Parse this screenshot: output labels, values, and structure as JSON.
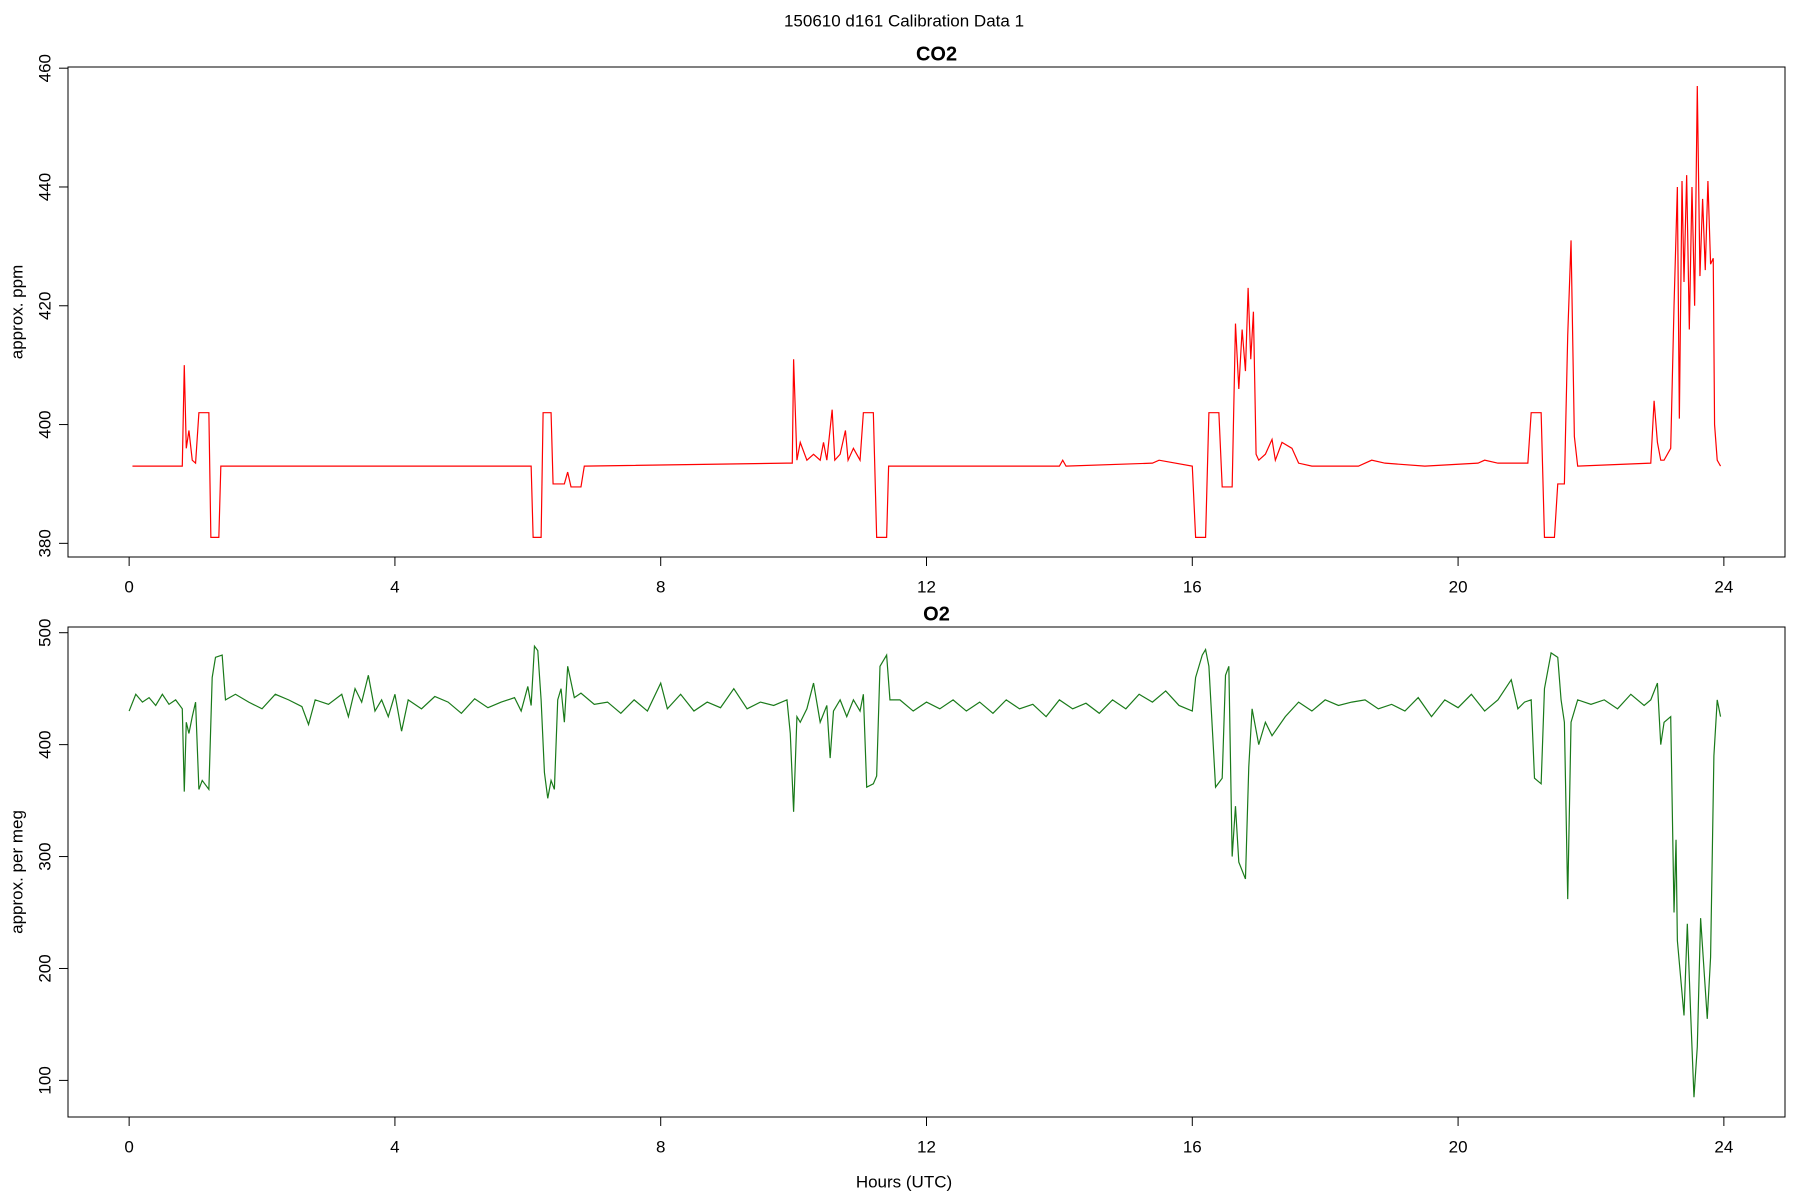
{
  "title": "150610   d161   Calibration Data 1",
  "chart_data": [
    {
      "type": "line",
      "title": "CO2",
      "y_label": "approx. ppm",
      "xlim": [
        -0.92,
        24.92
      ],
      "xticks": [
        0,
        4,
        8,
        12,
        16,
        20,
        24
      ],
      "ylim": [
        377.7,
        460.2
      ],
      "yticks": [
        380,
        400,
        420,
        440,
        460
      ],
      "series": [
        {
          "name": "CO2",
          "color": "#ff0000",
          "x": [
            0.05,
            0.8,
            0.83,
            0.86,
            0.9,
            0.95,
            1.0,
            1.05,
            1.2,
            1.23,
            1.35,
            1.38,
            6.05,
            6.08,
            6.2,
            6.23,
            6.35,
            6.38,
            6.55,
            6.6,
            6.65,
            6.8,
            6.85,
            9.9,
            9.98,
            10.0,
            10.05,
            10.1,
            10.2,
            10.3,
            10.4,
            10.45,
            10.5,
            10.58,
            10.62,
            10.7,
            10.78,
            10.82,
            10.9,
            11.0,
            11.05,
            11.2,
            11.25,
            11.4,
            11.43,
            14.0,
            14.05,
            14.1,
            15.4,
            15.5,
            16.0,
            16.05,
            16.2,
            16.25,
            16.4,
            16.45,
            16.6,
            16.65,
            16.7,
            16.75,
            16.8,
            16.84,
            16.88,
            16.92,
            16.96,
            17.0,
            17.1,
            17.2,
            17.25,
            17.35,
            17.5,
            17.6,
            17.8,
            18.5,
            18.7,
            18.9,
            19.5,
            20.3,
            20.4,
            20.6,
            21.05,
            21.1,
            21.25,
            21.3,
            21.45,
            21.5,
            21.6,
            21.65,
            21.7,
            21.75,
            21.8,
            22.9,
            22.95,
            23.0,
            23.05,
            23.1,
            23.2,
            23.25,
            23.3,
            23.33,
            23.37,
            23.4,
            23.44,
            23.48,
            23.52,
            23.56,
            23.6,
            23.64,
            23.68,
            23.72,
            23.76,
            23.8,
            23.84,
            23.86,
            23.9,
            23.95
          ],
          "values": [
            393,
            393,
            410,
            396,
            399,
            394,
            393.5,
            402,
            402,
            381,
            381,
            393,
            393,
            381,
            381,
            402,
            402,
            390,
            390,
            392,
            389.5,
            389.5,
            393,
            393.5,
            393.5,
            411,
            394,
            397,
            394,
            395,
            394,
            397,
            394,
            402.5,
            394,
            395,
            399,
            394,
            396,
            394,
            402,
            402,
            381,
            381,
            393,
            393,
            394,
            393,
            393.5,
            394,
            393,
            381,
            381,
            402,
            402,
            389.5,
            389.5,
            417,
            406,
            416,
            409,
            423,
            411,
            419,
            395,
            394,
            395,
            397.5,
            394,
            397,
            396,
            393.5,
            393,
            393,
            394,
            393.5,
            393,
            393.5,
            394,
            393.5,
            393.5,
            402,
            402,
            381,
            381,
            390,
            390,
            415,
            431,
            398,
            393,
            393.5,
            404,
            397,
            394,
            394,
            396,
            420,
            440,
            401,
            441,
            424,
            442,
            416,
            440,
            420,
            457,
            425,
            438,
            426,
            441,
            427,
            428,
            400,
            394,
            393
          ]
        }
      ]
    },
    {
      "type": "line",
      "title": "O2",
      "y_label": "approx. per meg",
      "x_label": "Hours (UTC)",
      "xlim": [
        -0.92,
        24.92
      ],
      "xticks": [
        0,
        4,
        8,
        12,
        16,
        20,
        24
      ],
      "ylim": [
        67.3,
        505.1
      ],
      "yticks": [
        100,
        200,
        300,
        400,
        500
      ],
      "series": [
        {
          "name": "O2",
          "color": "#1a7a1a",
          "x": [
            0.0,
            0.1,
            0.2,
            0.3,
            0.4,
            0.5,
            0.6,
            0.7,
            0.8,
            0.83,
            0.86,
            0.9,
            0.95,
            1.0,
            1.05,
            1.1,
            1.2,
            1.25,
            1.3,
            1.4,
            1.45,
            1.6,
            1.8,
            2.0,
            2.2,
            2.4,
            2.6,
            2.7,
            2.8,
            3.0,
            3.2,
            3.3,
            3.4,
            3.5,
            3.6,
            3.7,
            3.8,
            3.9,
            4.0,
            4.1,
            4.2,
            4.4,
            4.6,
            4.8,
            5.0,
            5.2,
            5.4,
            5.6,
            5.8,
            5.9,
            6.0,
            6.05,
            6.1,
            6.15,
            6.2,
            6.25,
            6.3,
            6.35,
            6.4,
            6.45,
            6.5,
            6.55,
            6.6,
            6.7,
            6.8,
            7.0,
            7.2,
            7.4,
            7.6,
            7.8,
            8.0,
            8.1,
            8.3,
            8.5,
            8.7,
            8.9,
            9.1,
            9.3,
            9.5,
            9.7,
            9.9,
            9.95,
            10.0,
            10.05,
            10.1,
            10.2,
            10.3,
            10.4,
            10.5,
            10.55,
            10.6,
            10.7,
            10.8,
            10.9,
            11.0,
            11.05,
            11.1,
            11.2,
            11.25,
            11.3,
            11.4,
            11.45,
            11.6,
            11.8,
            12.0,
            12.2,
            12.4,
            12.6,
            12.8,
            13.0,
            13.2,
            13.4,
            13.6,
            13.8,
            14.0,
            14.2,
            14.4,
            14.6,
            14.8,
            15.0,
            15.2,
            15.4,
            15.6,
            15.8,
            16.0,
            16.05,
            16.15,
            16.2,
            16.25,
            16.35,
            16.45,
            16.5,
            16.55,
            16.6,
            16.65,
            16.7,
            16.8,
            16.85,
            16.9,
            17.0,
            17.1,
            17.2,
            17.4,
            17.6,
            17.8,
            18.0,
            18.2,
            18.4,
            18.6,
            18.8,
            19.0,
            19.2,
            19.4,
            19.6,
            19.8,
            20.0,
            20.2,
            20.4,
            20.6,
            20.8,
            20.9,
            21.0,
            21.1,
            21.15,
            21.25,
            21.3,
            21.4,
            21.5,
            21.55,
            21.6,
            21.65,
            21.7,
            21.8,
            22.0,
            22.2,
            22.4,
            22.6,
            22.8,
            22.9,
            23.0,
            23.05,
            23.1,
            23.2,
            23.25,
            23.28,
            23.3,
            23.4,
            23.45,
            23.5,
            23.55,
            23.6,
            23.65,
            23.7,
            23.75,
            23.8,
            23.85,
            23.9,
            23.95
          ],
          "values": [
            430,
            445,
            438,
            442,
            435,
            445,
            436,
            440,
            432,
            358,
            420,
            410,
            425,
            438,
            360,
            368,
            360,
            460,
            478,
            480,
            440,
            445,
            438,
            432,
            445,
            440,
            434,
            418,
            440,
            436,
            445,
            425,
            450,
            438,
            462,
            430,
            440,
            425,
            445,
            412,
            440,
            432,
            443,
            438,
            428,
            441,
            433,
            438,
            442,
            430,
            452,
            435,
            488,
            484,
            440,
            375,
            352,
            368,
            360,
            440,
            450,
            420,
            470,
            442,
            446,
            436,
            438,
            428,
            440,
            430,
            455,
            432,
            445,
            430,
            438,
            433,
            450,
            432,
            438,
            435,
            440,
            410,
            340,
            425,
            420,
            432,
            455,
            420,
            435,
            388,
            430,
            440,
            425,
            440,
            430,
            445,
            362,
            365,
            372,
            470,
            480,
            440,
            440,
            430,
            438,
            432,
            440,
            430,
            438,
            428,
            440,
            432,
            436,
            425,
            440,
            432,
            437,
            428,
            440,
            432,
            445,
            438,
            448,
            435,
            430,
            460,
            480,
            485,
            470,
            362,
            370,
            462,
            470,
            300,
            345,
            295,
            280,
            380,
            432,
            400,
            420,
            408,
            425,
            438,
            430,
            440,
            435,
            438,
            440,
            432,
            436,
            430,
            442,
            425,
            440,
            433,
            445,
            430,
            440,
            458,
            432,
            438,
            440,
            370,
            365,
            450,
            482,
            478,
            440,
            420,
            262,
            420,
            440,
            436,
            440,
            432,
            445,
            435,
            440,
            455,
            400,
            420,
            425,
            250,
            315,
            225,
            158,
            240,
            160,
            85,
            130,
            245,
            200,
            155,
            210,
            390,
            440,
            425
          ]
        }
      ]
    }
  ]
}
